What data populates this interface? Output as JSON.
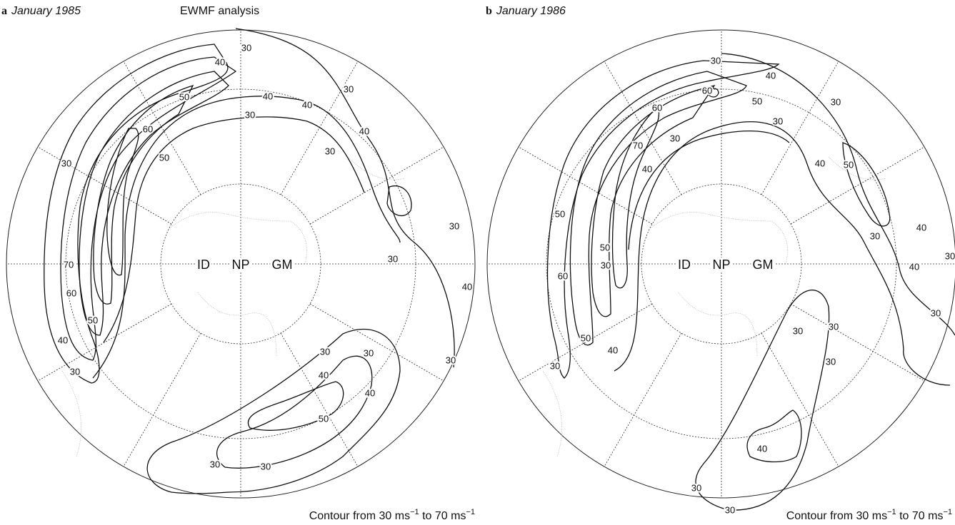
{
  "panels": [
    {
      "letter": "a",
      "date": "January 1985",
      "subtitle": "EWMF analysis",
      "labels": {
        "west": "ID",
        "pole": "NP",
        "east": "GM"
      },
      "contour_labels": [
        30,
        40,
        50,
        60,
        50,
        40,
        30,
        40,
        30,
        40,
        30,
        30,
        30,
        30,
        40,
        70,
        60,
        50,
        40,
        30,
        30,
        30,
        40,
        40,
        50,
        30,
        30,
        30
      ],
      "footer": {
        "text1": "Contour from 30 ms",
        "sup1": "−1",
        "text2": " to 70 ms",
        "sup2": "−1"
      }
    },
    {
      "letter": "b",
      "date": "January 1986",
      "labels": {
        "west": "ID",
        "pole": "NP",
        "east": "GM"
      },
      "contour_labels": [
        30,
        40,
        60,
        50,
        60,
        30,
        30,
        70,
        40,
        30,
        40,
        50,
        50,
        50,
        60,
        30,
        30,
        40,
        30,
        40,
        30,
        30,
        30,
        30,
        50,
        40,
        30,
        30,
        40,
        30
      ],
      "footer": {
        "text1": "Contour from 30 ms",
        "sup1": "−1",
        "text2": " to 70 ms",
        "sup2": "−1"
      }
    }
  ]
}
